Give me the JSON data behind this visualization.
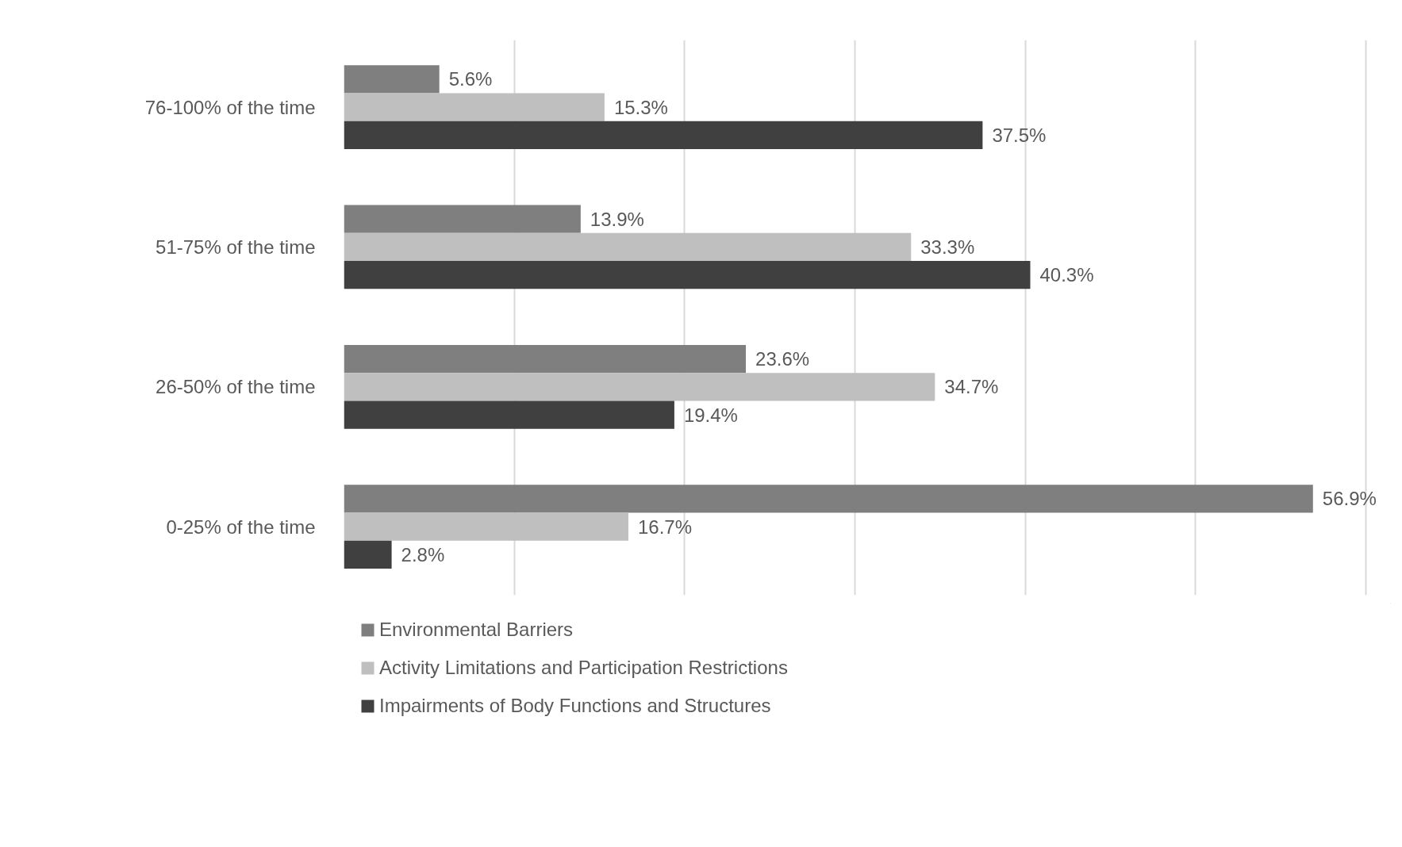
{
  "chart_data": {
    "type": "bar",
    "orientation": "horizontal",
    "categories": [
      "76-100% of the time",
      "51-75% of the time",
      "26-50% of the time",
      "0-25% of the time"
    ],
    "series": [
      {
        "name": "Environmental Barriers",
        "color": "#7f7f7f",
        "values": [
          5.6,
          13.9,
          23.6,
          56.9
        ],
        "value_labels": [
          "5.6%",
          "13.9%",
          "23.6%",
          "56.9%"
        ]
      },
      {
        "name": "Activity Limitations and Participation Restrictions",
        "color": "#bfbfbf",
        "values": [
          15.3,
          33.3,
          34.7,
          16.7
        ],
        "value_labels": [
          "15.3%",
          "33.3%",
          "34.7%",
          "16.7%"
        ]
      },
      {
        "name": "Impairments of Body Functions and Structures",
        "color": "#404040",
        "values": [
          37.5,
          40.3,
          19.4,
          2.8
        ],
        "value_labels": [
          "37.5%",
          "40.3%",
          "19.4%",
          "2.8%"
        ]
      }
    ],
    "grid": "x",
    "legend": "bottom",
    "tick_labels": "y"
  }
}
